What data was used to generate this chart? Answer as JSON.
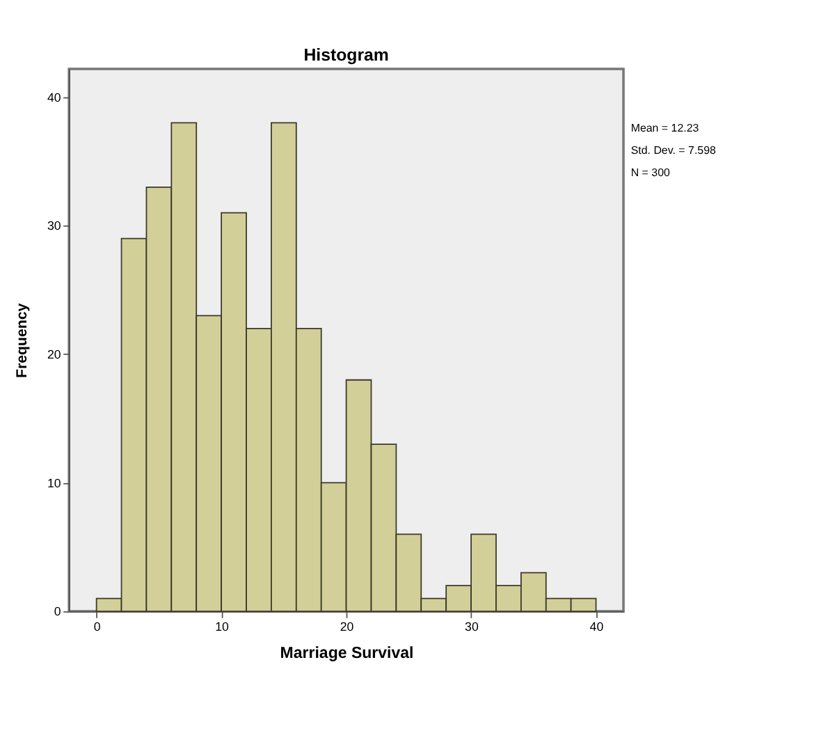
{
  "chart_data": {
    "type": "histogram",
    "title": "Histogram",
    "xlabel": "Marriage Survival",
    "ylabel": "Frequency",
    "bins": [
      0,
      2,
      4,
      6,
      8,
      10,
      12,
      14,
      16,
      18,
      20,
      22,
      24,
      26,
      28,
      30,
      32,
      34,
      36,
      38,
      40
    ],
    "values": [
      1,
      29,
      33,
      38,
      23,
      31,
      22,
      38,
      22,
      10,
      18,
      13,
      6,
      1,
      2,
      6,
      2,
      3,
      1,
      1
    ],
    "color": "#d3cf98",
    "xlim": [
      -2.2,
      42.2
    ],
    "xticks": [
      0,
      10,
      20,
      30,
      40
    ],
    "ylim": [
      0,
      42.2
    ],
    "yticks": [
      0,
      10,
      20,
      30,
      40
    ],
    "grid": false,
    "annotations": [
      "Mean = 12.23",
      "Std. Dev. = 7.598",
      "N = 300"
    ]
  }
}
